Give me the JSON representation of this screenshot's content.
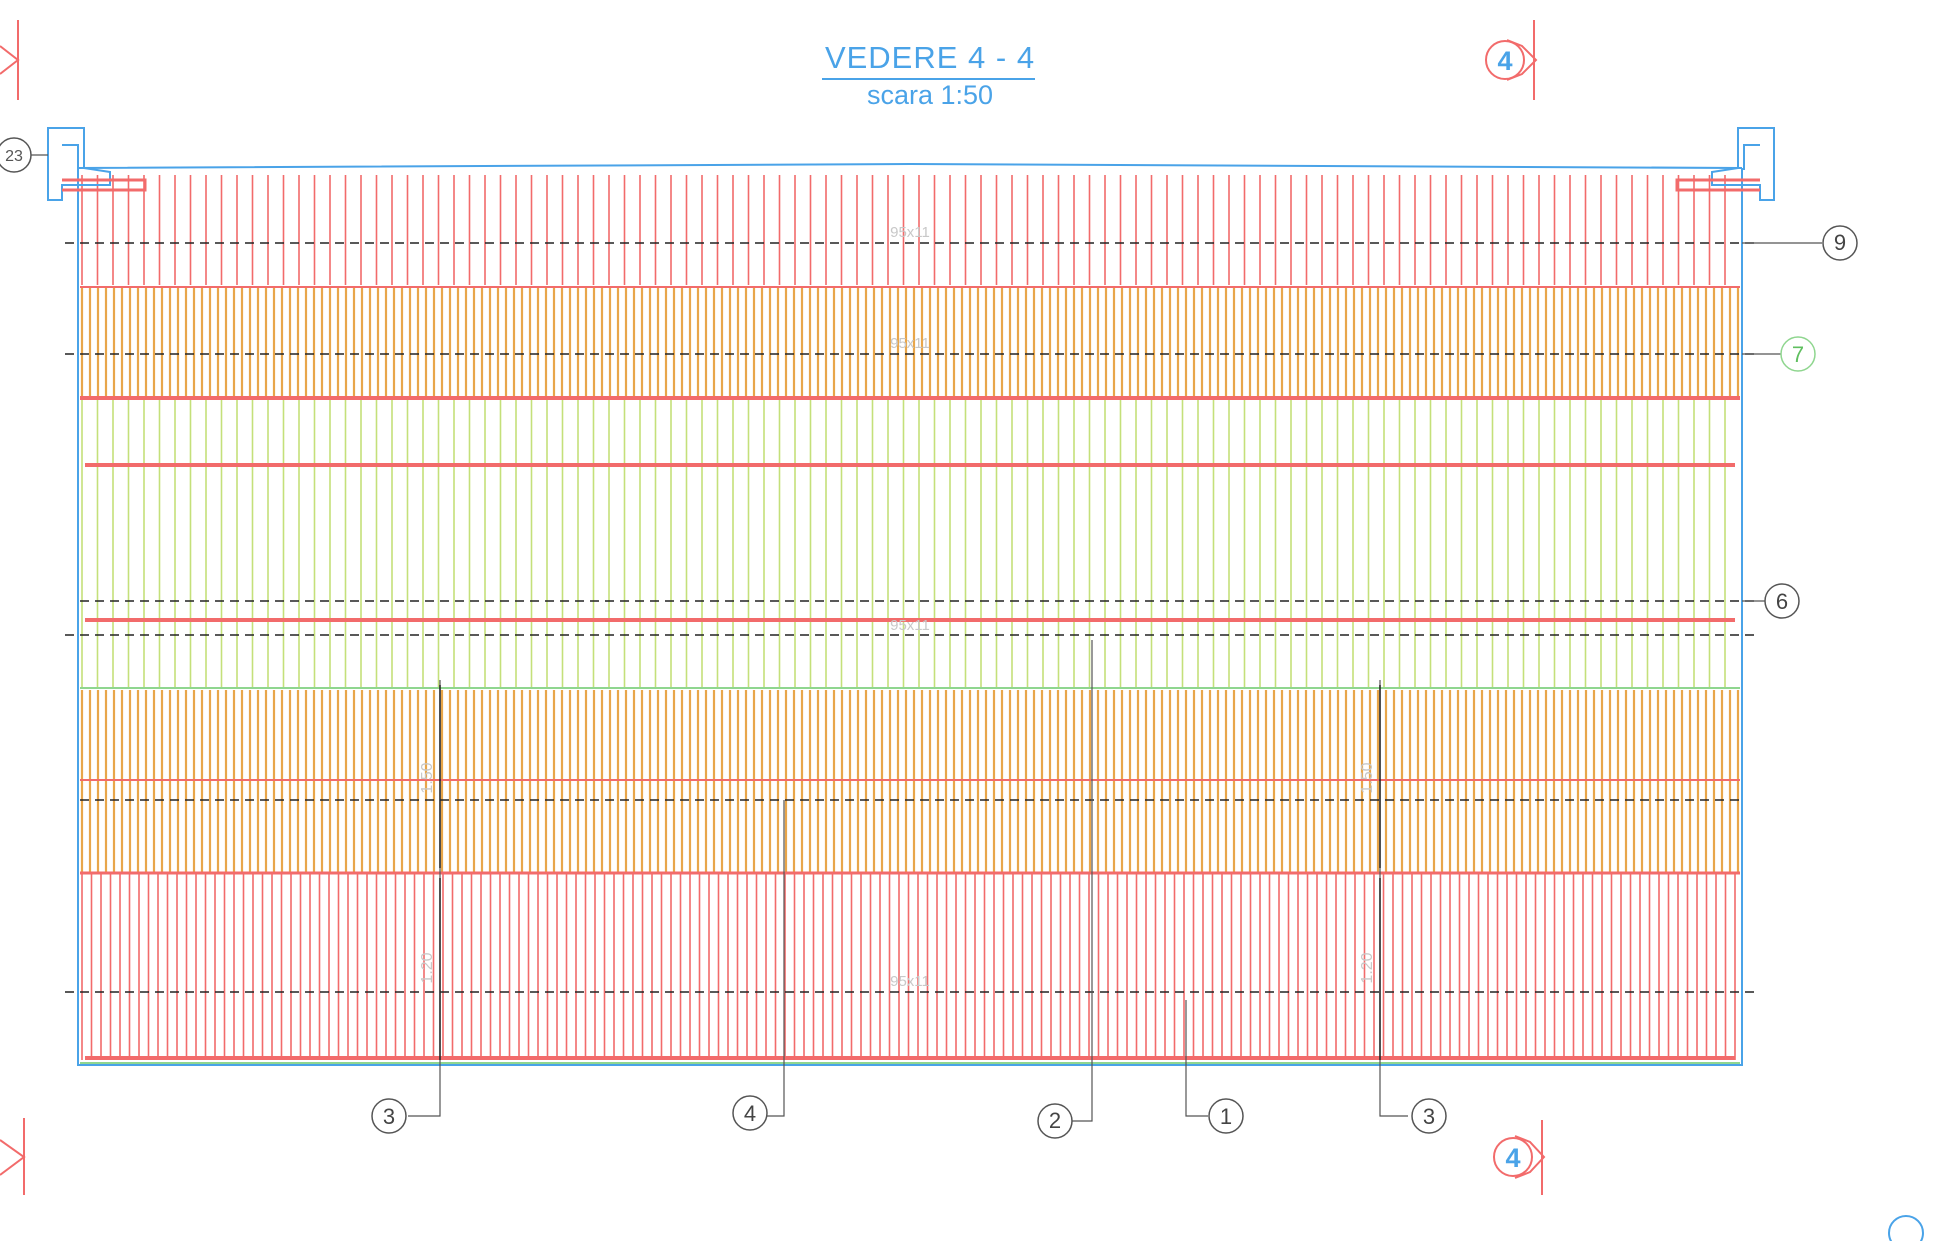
{
  "title": "VEDERE  4 - 4",
  "scale": "scara 1:50",
  "section_mark": "4",
  "corner_label": "23",
  "bar_spec": "95x11",
  "callouts": {
    "c9": "9",
    "c7": "7",
    "c6": "6",
    "c3_left": "3",
    "c4": "4",
    "c2": "2",
    "c1": "1",
    "c3_right": "3"
  },
  "dimensions": {
    "d_upper": "1.50",
    "d_lower": "1.20"
  },
  "colors": {
    "outline": "#4aa3e8",
    "rebar_red": "#f26b6b",
    "rebar_orange": "#e8a64a",
    "rebar_green": "#c4e07a",
    "dash": "#222222",
    "leader": "#555555"
  }
}
